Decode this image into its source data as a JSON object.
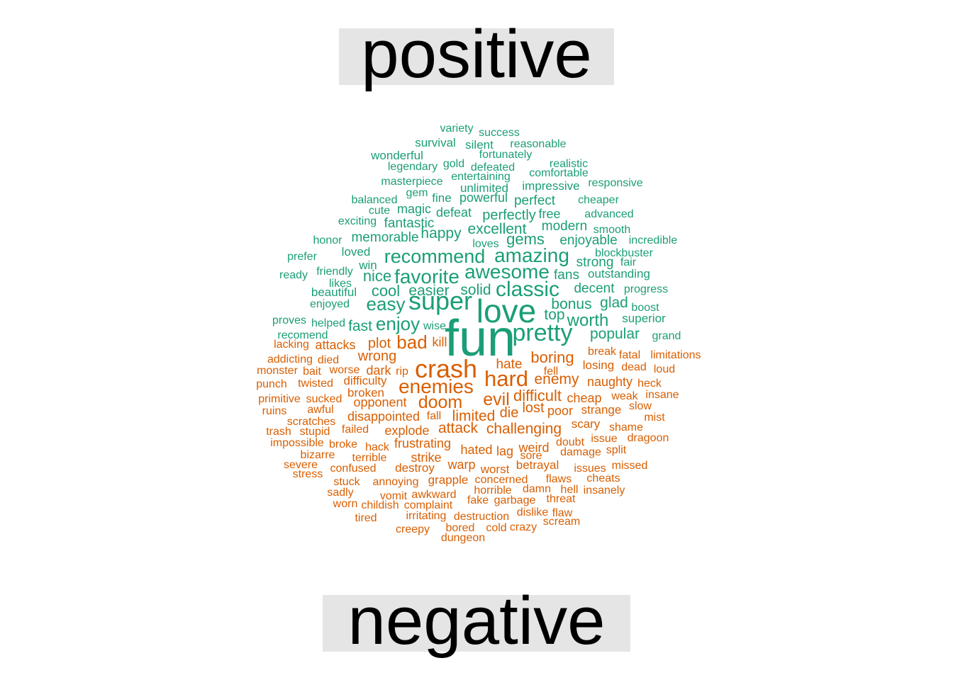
{
  "chart_data": {
    "type": "wordcloud",
    "groups": [
      {
        "name": "positive",
        "color": "#1b9e77"
      },
      {
        "name": "negative",
        "color": "#d95f02"
      }
    ],
    "words": [
      [
        "fun",
        "positive",
        72
      ],
      [
        "love",
        "positive",
        46
      ],
      [
        "super",
        "positive",
        36
      ],
      [
        "pretty",
        "positive",
        34
      ],
      [
        "classic",
        "positive",
        30
      ],
      [
        "awesome",
        "positive",
        28
      ],
      [
        "amazing",
        "positive",
        28
      ],
      [
        "recommend",
        "positive",
        27
      ],
      [
        "favorite",
        "positive",
        28
      ],
      [
        "easy",
        "positive",
        26
      ],
      [
        "enjoy",
        "positive",
        26
      ],
      [
        "worth",
        "positive",
        24
      ],
      [
        "gems",
        "positive",
        22
      ],
      [
        "nice",
        "positive",
        22
      ],
      [
        "cool",
        "positive",
        22
      ],
      [
        "popular",
        "positive",
        21
      ],
      [
        "solid",
        "positive",
        21
      ],
      [
        "fast",
        "positive",
        21
      ],
      [
        "excellent",
        "positive",
        21
      ],
      [
        "easier",
        "positive",
        21
      ],
      [
        "bonus",
        "positive",
        21
      ],
      [
        "top",
        "positive",
        21
      ],
      [
        "glad",
        "positive",
        21
      ],
      [
        "happy",
        "positive",
        21
      ],
      [
        "perfectly",
        "positive",
        20
      ],
      [
        "fantastic",
        "positive",
        19
      ],
      [
        "perfect",
        "positive",
        19
      ],
      [
        "modern",
        "positive",
        19
      ],
      [
        "decent",
        "positive",
        19
      ],
      [
        "memorable",
        "positive",
        19
      ],
      [
        "strong",
        "positive",
        19
      ],
      [
        "fans",
        "positive",
        19
      ],
      [
        "enjoyable",
        "positive",
        19
      ],
      [
        "powerful",
        "positive",
        18
      ],
      [
        "defeat",
        "positive",
        18
      ],
      [
        "magic",
        "positive",
        18
      ],
      [
        "impressive",
        "positive",
        17
      ],
      [
        "free",
        "positive",
        18
      ],
      [
        "loved",
        "positive",
        17
      ],
      [
        "win",
        "positive",
        17
      ],
      [
        "outstanding",
        "positive",
        17
      ],
      [
        "superior",
        "positive",
        17
      ],
      [
        "beautiful",
        "positive",
        17
      ],
      [
        "unlimited",
        "positive",
        17
      ],
      [
        "fine",
        "positive",
        17
      ],
      [
        "wonderful",
        "positive",
        17
      ],
      [
        "survival",
        "positive",
        17
      ],
      [
        "silent",
        "positive",
        17
      ],
      [
        "fortunately",
        "positive",
        16
      ],
      [
        "reasonable",
        "positive",
        16
      ],
      [
        "success",
        "positive",
        16
      ],
      [
        "variety",
        "positive",
        16
      ],
      [
        "legendary",
        "positive",
        16
      ],
      [
        "gold",
        "positive",
        16
      ],
      [
        "defeated",
        "positive",
        16
      ],
      [
        "realistic",
        "positive",
        16
      ],
      [
        "comfortable",
        "positive",
        16
      ],
      [
        "entertaining",
        "positive",
        16
      ],
      [
        "masterpiece",
        "positive",
        16
      ],
      [
        "gem",
        "positive",
        16
      ],
      [
        "responsive",
        "positive",
        16
      ],
      [
        "balanced",
        "positive",
        16
      ],
      [
        "cheaper",
        "positive",
        16
      ],
      [
        "cute",
        "positive",
        16
      ],
      [
        "advanced",
        "positive",
        16
      ],
      [
        "exciting",
        "positive",
        16
      ],
      [
        "smooth",
        "positive",
        16
      ],
      [
        "honor",
        "positive",
        16
      ],
      [
        "loves",
        "positive",
        16
      ],
      [
        "incredible",
        "positive",
        16
      ],
      [
        "blockbuster",
        "positive",
        16
      ],
      [
        "prefer",
        "positive",
        16
      ],
      [
        "fair",
        "positive",
        16
      ],
      [
        "friendly",
        "positive",
        16
      ],
      [
        "ready",
        "positive",
        16
      ],
      [
        "likes",
        "positive",
        16
      ],
      [
        "progress",
        "positive",
        16
      ],
      [
        "enjoyed",
        "positive",
        16
      ],
      [
        "boost",
        "positive",
        16
      ],
      [
        "proves",
        "positive",
        16
      ],
      [
        "helped",
        "positive",
        16
      ],
      [
        "wise",
        "positive",
        16
      ],
      [
        "grand",
        "positive",
        16
      ],
      [
        "recomend",
        "positive",
        16
      ],
      [
        "crash",
        "negative",
        36
      ],
      [
        "hard",
        "negative",
        31
      ],
      [
        "enemies",
        "negative",
        28
      ],
      [
        "bad",
        "negative",
        26
      ],
      [
        "doom",
        "negative",
        25
      ],
      [
        "evil",
        "negative",
        25
      ],
      [
        "difficult",
        "negative",
        22
      ],
      [
        "boring",
        "negative",
        22
      ],
      [
        "challenging",
        "negative",
        21
      ],
      [
        "limited",
        "negative",
        21
      ],
      [
        "enemy",
        "negative",
        21
      ],
      [
        "attack",
        "negative",
        21
      ],
      [
        "lost",
        "negative",
        20
      ],
      [
        "die",
        "negative",
        20
      ],
      [
        "plot",
        "negative",
        20
      ],
      [
        "wrong",
        "negative",
        20
      ],
      [
        "hate",
        "negative",
        19
      ],
      [
        "naughty",
        "negative",
        18
      ],
      [
        "cheap",
        "negative",
        18
      ],
      [
        "poor",
        "negative",
        18
      ],
      [
        "strange",
        "negative",
        17
      ],
      [
        "losing",
        "negative",
        17
      ],
      [
        "scary",
        "negative",
        17
      ],
      [
        "difficulty",
        "negative",
        17
      ],
      [
        "broken",
        "negative",
        17
      ],
      [
        "disappointed",
        "negative",
        18
      ],
      [
        "explode",
        "negative",
        18
      ],
      [
        "frustrating",
        "negative",
        18
      ],
      [
        "attacks",
        "negative",
        18
      ],
      [
        "dark",
        "negative",
        18
      ],
      [
        "kill",
        "negative",
        18
      ],
      [
        "opponent",
        "negative",
        18
      ],
      [
        "strike",
        "negative",
        18
      ],
      [
        "hated",
        "negative",
        18
      ],
      [
        "warp",
        "negative",
        18
      ],
      [
        "weird",
        "negative",
        18
      ],
      [
        "lag",
        "negative",
        18
      ],
      [
        "destroy",
        "negative",
        17
      ],
      [
        "worst",
        "negative",
        17
      ],
      [
        "betrayal",
        "negative",
        17
      ],
      [
        "worse",
        "negative",
        16
      ],
      [
        "died",
        "negative",
        16
      ],
      [
        "sucked",
        "negative",
        16
      ],
      [
        "twisted",
        "negative",
        16
      ],
      [
        "awful",
        "negative",
        16
      ],
      [
        "doubt",
        "negative",
        16
      ],
      [
        "break",
        "negative",
        16
      ],
      [
        "fatal",
        "negative",
        16
      ],
      [
        "dead",
        "negative",
        16
      ],
      [
        "grapple",
        "negative",
        17
      ],
      [
        "concerned",
        "negative",
        16
      ],
      [
        "limitations",
        "negative",
        16
      ],
      [
        "loud",
        "negative",
        16
      ],
      [
        "fell",
        "negative",
        16
      ],
      [
        "heck",
        "negative",
        16
      ],
      [
        "insane",
        "negative",
        16
      ],
      [
        "weak",
        "negative",
        16
      ],
      [
        "slow",
        "negative",
        16
      ],
      [
        "mist",
        "negative",
        16
      ],
      [
        "shame",
        "negative",
        16
      ],
      [
        "dragoon",
        "negative",
        16
      ],
      [
        "issue",
        "negative",
        16
      ],
      [
        "split",
        "negative",
        16
      ],
      [
        "damage",
        "negative",
        16
      ],
      [
        "missed",
        "negative",
        16
      ],
      [
        "issues",
        "negative",
        16
      ],
      [
        "cheats",
        "negative",
        16
      ],
      [
        "flaws",
        "negative",
        16
      ],
      [
        "insanely",
        "negative",
        16
      ],
      [
        "hell",
        "negative",
        16
      ],
      [
        "damn",
        "negative",
        16
      ],
      [
        "threat",
        "negative",
        16
      ],
      [
        "horrible",
        "negative",
        16
      ],
      [
        "awkward",
        "negative",
        16
      ],
      [
        "vomit",
        "negative",
        16
      ],
      [
        "fake",
        "negative",
        16
      ],
      [
        "garbage",
        "negative",
        16
      ],
      [
        "complaint",
        "negative",
        16
      ],
      [
        "childish",
        "negative",
        16
      ],
      [
        "irritating",
        "negative",
        16
      ],
      [
        "destruction",
        "negative",
        16
      ],
      [
        "dislike",
        "negative",
        16
      ],
      [
        "flaw",
        "negative",
        16
      ],
      [
        "scream",
        "negative",
        16
      ],
      [
        "crazy",
        "negative",
        16
      ],
      [
        "cold",
        "negative",
        16
      ],
      [
        "bored",
        "negative",
        16
      ],
      [
        "creepy",
        "negative",
        16
      ],
      [
        "dungeon",
        "negative",
        16
      ],
      [
        "tired",
        "negative",
        16
      ],
      [
        "worn",
        "negative",
        16
      ],
      [
        "sadly",
        "negative",
        16
      ],
      [
        "stuck",
        "negative",
        16
      ],
      [
        "annoying",
        "negative",
        16
      ],
      [
        "confused",
        "negative",
        16
      ],
      [
        "stress",
        "negative",
        16
      ],
      [
        "severe",
        "negative",
        16
      ],
      [
        "bizarre",
        "negative",
        16
      ],
      [
        "terrible",
        "negative",
        16
      ],
      [
        "hack",
        "negative",
        16
      ],
      [
        "broke",
        "negative",
        16
      ],
      [
        "impossible",
        "negative",
        16
      ],
      [
        "stupid",
        "negative",
        16
      ],
      [
        "trash",
        "negative",
        16
      ],
      [
        "failed",
        "negative",
        16
      ],
      [
        "scratches",
        "negative",
        16
      ],
      [
        "ruins",
        "negative",
        16
      ],
      [
        "fall",
        "negative",
        16
      ],
      [
        "primitive",
        "negative",
        16
      ],
      [
        "punch",
        "negative",
        16
      ],
      [
        "monster",
        "negative",
        16
      ],
      [
        "bait",
        "negative",
        16
      ],
      [
        "rip",
        "negative",
        16
      ],
      [
        "addicting",
        "negative",
        16
      ],
      [
        "lacking",
        "negative",
        16
      ],
      [
        "sore",
        "negative",
        16
      ]
    ]
  }
}
